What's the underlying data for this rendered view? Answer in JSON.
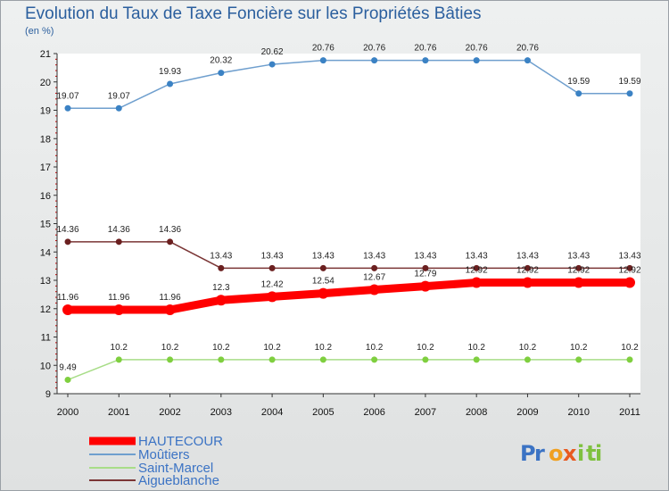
{
  "chart_data": {
    "type": "line",
    "title": "Evolution du Taux de Taxe Foncière sur les Propriétés Bâties",
    "subtitle": "(en %)",
    "x": [
      "2000",
      "2001",
      "2002",
      "2003",
      "2004",
      "2005",
      "2006",
      "2007",
      "2008",
      "2009",
      "2010",
      "2011"
    ],
    "ylim": [
      9,
      21
    ],
    "yticks": [
      "9",
      "10",
      "11",
      "12",
      "13",
      "14",
      "15",
      "16",
      "17",
      "18",
      "19",
      "20",
      "21"
    ],
    "series": [
      {
        "name": "Moûtiers",
        "color": "#6f9fce",
        "point_color": "#3b82c4",
        "values": [
          19.07,
          19.07,
          19.93,
          20.32,
          20.62,
          20.76,
          20.76,
          20.76,
          20.76,
          20.76,
          19.59,
          19.59
        ],
        "labels": [
          "19.07",
          "19.07",
          "19.93",
          "20.32",
          "20.62",
          "20.76",
          "20.76",
          "20.76",
          "20.76",
          "20.76",
          "19.59",
          "19.59"
        ]
      },
      {
        "name": "Aigueblanche",
        "color": "#7a3535",
        "point_color": "#6b2020",
        "values": [
          14.36,
          14.36,
          14.36,
          13.43,
          13.43,
          13.43,
          13.43,
          13.43,
          13.43,
          13.43,
          13.43,
          13.43
        ],
        "labels": [
          "14.36",
          "14.36",
          "14.36",
          "13.43",
          "13.43",
          "13.43",
          "13.43",
          "13.43",
          "13.43",
          "13.43",
          "13.43",
          "13.43"
        ]
      },
      {
        "name": "Saint-Marcel",
        "color": "#a8dd88",
        "point_color": "#7fcf3f",
        "values": [
          9.49,
          10.2,
          10.2,
          10.2,
          10.2,
          10.2,
          10.2,
          10.2,
          10.2,
          10.2,
          10.2,
          10.2
        ],
        "labels": [
          "9.49",
          "10.2",
          "10.2",
          "10.2",
          "10.2",
          "10.2",
          "10.2",
          "10.2",
          "10.2",
          "10.2",
          "10.2",
          "10.2"
        ]
      },
      {
        "name": "HAUTECOUR",
        "color": "#ff0000",
        "point_color": "#ff0000",
        "values": [
          11.96,
          11.96,
          11.96,
          12.3,
          12.42,
          12.54,
          12.67,
          12.79,
          12.92,
          12.92,
          12.92,
          12.92
        ],
        "labels": [
          "11.96",
          "11.96",
          "11.96",
          "12.3",
          "12.42",
          "12.54",
          "12.67",
          "12.79",
          "12.92",
          "12.92",
          "12.92",
          "12.92"
        ]
      }
    ],
    "legend": [
      "HAUTECOUR",
      "Moûtiers",
      "Saint-Marcel",
      "Aigueblanche"
    ],
    "legend_position": "bottom-left"
  },
  "branding": {
    "logo_letters": [
      "P",
      "r",
      "o",
      "x",
      "i",
      "t",
      "i"
    ]
  }
}
